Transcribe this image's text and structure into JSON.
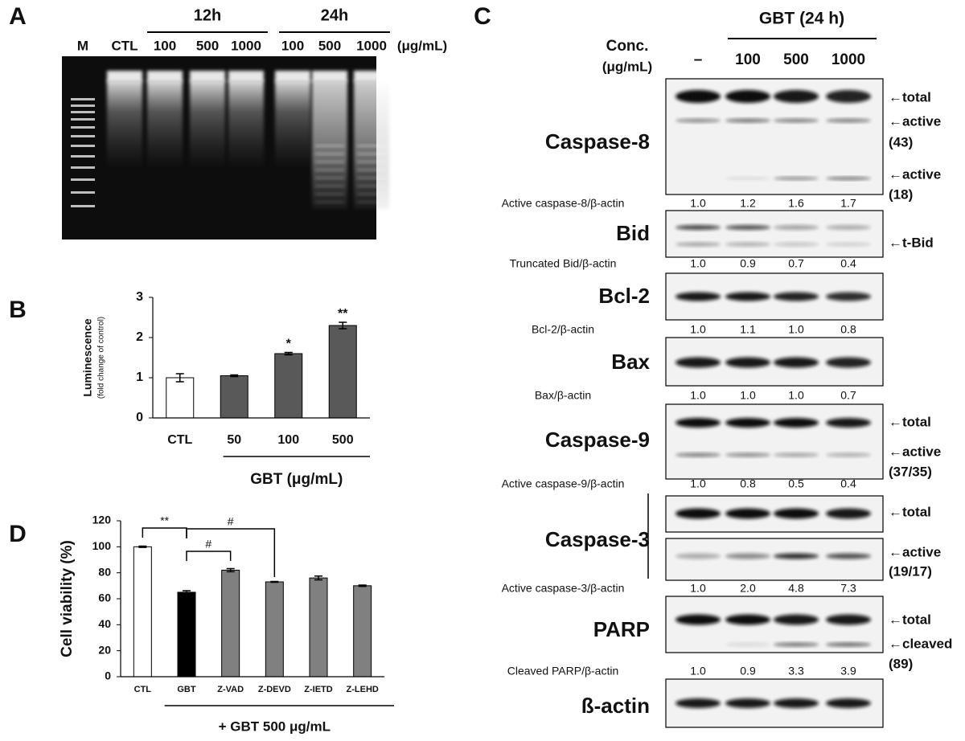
{
  "panel_a": {
    "label": "A",
    "groups": [
      "12h",
      "24h"
    ],
    "lanes": [
      "M",
      "CTL",
      "100",
      "500",
      "1000",
      "100",
      "500",
      "1000"
    ],
    "unit": "(μg/mL)"
  },
  "chart_data": [
    {
      "type": "bar",
      "label": "B",
      "y_label": "Luminescence",
      "y_label_sub": "(fold change of control)",
      "categories": [
        "CTL",
        "50",
        "100",
        "500"
      ],
      "values": [
        1.0,
        1.05,
        1.6,
        2.3
      ],
      "errors": [
        0.1,
        0.02,
        0.03,
        0.08
      ],
      "colors": [
        "#ffffff",
        "#595959",
        "#595959",
        "#595959"
      ],
      "annotations": [
        null,
        null,
        "*",
        "**"
      ],
      "group_label": "GBT (μg/mL)",
      "ylim": [
        0,
        3
      ],
      "yticks": [
        0,
        1,
        2,
        3
      ]
    },
    {
      "type": "bar",
      "label": "D",
      "y_label": "Cell viability (%)",
      "categories": [
        "CTL",
        "GBT",
        "Z-VAD",
        "Z-DEVD",
        "Z-IETD",
        "Z-LEHD"
      ],
      "values": [
        100,
        65,
        82,
        73,
        76,
        70
      ],
      "errors": [
        0.5,
        1.2,
        1.2,
        0.3,
        1.5,
        0.5
      ],
      "colors": [
        "#ffffff",
        "#000000",
        "#808080",
        "#808080",
        "#808080",
        "#808080"
      ],
      "brackets": [
        {
          "between": [
            0,
            1
          ],
          "label": "**"
        },
        {
          "between": [
            1,
            2
          ],
          "label": "#"
        },
        {
          "between": [
            1,
            3
          ],
          "label": "#"
        }
      ],
      "group_label": "+ GBT 500 μg/mL",
      "ylim": [
        0,
        120
      ],
      "yticks": [
        0,
        20,
        40,
        60,
        80,
        100,
        120
      ]
    }
  ],
  "panel_c": {
    "label": "C",
    "treatment": "GBT (24 h)",
    "conc_label": "Conc.",
    "conc_unit": "(μg/mL)",
    "lanes": [
      "–",
      "100",
      "500",
      "1000"
    ],
    "rows": [
      {
        "name": "Caspase-8",
        "ratio_label": "Active caspase-8/β-actin",
        "ratios": [
          "1.0",
          "1.2",
          "1.6",
          "1.7"
        ],
        "side_labels": [
          "←total",
          "←active",
          "(43)",
          "←active",
          "(18)"
        ]
      },
      {
        "name": "Bid",
        "ratio_label": "Truncated Bid/β-actin",
        "ratios": [
          "1.0",
          "0.9",
          "0.7",
          "0.4"
        ],
        "side_labels": [
          "←t-Bid"
        ]
      },
      {
        "name": "Bcl-2",
        "ratio_label": "Bcl-2/β-actin",
        "ratios": [
          "1.0",
          "1.1",
          "1.0",
          "0.8"
        ],
        "side_labels": []
      },
      {
        "name": "Bax",
        "ratio_label": "Bax/β-actin",
        "ratios": [
          "1.0",
          "1.0",
          "1.0",
          "0.7"
        ],
        "side_labels": []
      },
      {
        "name": "Caspase-9",
        "ratio_label": "Active caspase-9/β-actin",
        "ratios": [
          "1.0",
          "0.8",
          "0.5",
          "0.4"
        ],
        "side_labels": [
          "←total",
          "←active",
          "(37/35)"
        ]
      },
      {
        "name": "Caspase-3",
        "ratio_label": "Active caspase-3/β-actin",
        "ratios": [
          "1.0",
          "2.0",
          "4.8",
          "7.3"
        ],
        "side_labels": [
          "←total",
          "←active",
          "(19/17)"
        ]
      },
      {
        "name": "PARP",
        "ratio_label": "Cleaved PARP/β-actin",
        "ratios": [
          "1.0",
          "0.9",
          "3.3",
          "3.9"
        ],
        "side_labels": [
          "←total",
          "←cleaved",
          "(89)"
        ]
      },
      {
        "name": "ß-actin",
        "side_labels": []
      }
    ]
  }
}
